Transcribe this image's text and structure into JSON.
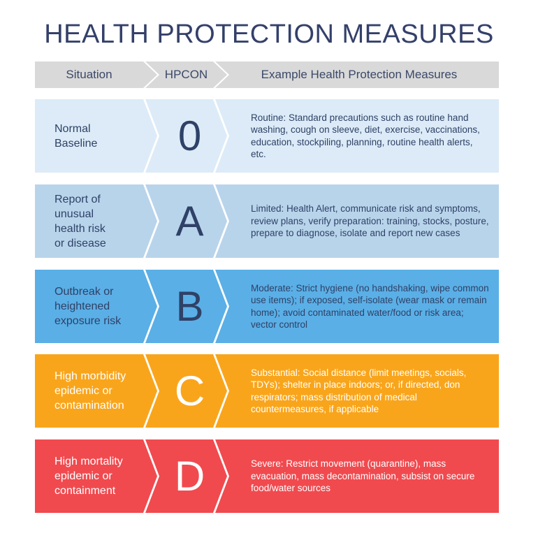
{
  "title": "HEALTH PROTECTION MEASURES",
  "header": {
    "situation": "Situation",
    "hpcon": "HPCON",
    "measures": "Example Health Protection Measures"
  },
  "colors": {
    "title": "#34406a",
    "header_bg": "#d9d9d9",
    "level_0": "#dcebf7",
    "level_A": "#b8d4eb",
    "level_B": "#5aafe6",
    "level_C": "#f9a51b",
    "level_D": "#f04a4f"
  },
  "levels": [
    {
      "situation": "Normal\nBaseline",
      "code": "0",
      "measures": "Routine: Standard precautions such as routine hand washing, cough on sleeve, diet, exercise, vaccinations, education, stockpiling, planning, routine health alerts, etc.",
      "bg": "#dcebf7",
      "fg": "#2f4167"
    },
    {
      "situation": "Report of\nunusual\nhealth risk\nor disease",
      "code": "A",
      "measures": "Limited: Health Alert, communicate risk and symptoms, review plans, verify preparation: training, stocks, posture, prepare to diagnose, isolate and report new cases",
      "bg": "#b8d4eb",
      "fg": "#2f4167"
    },
    {
      "situation": "Outbreak or\nheightened\nexposure risk",
      "code": "B",
      "measures": "Moderate: Strict hygiene (no handshaking, wipe common use items); if exposed, self-isolate (wear mask or remain home); avoid contaminated water/food or risk area; vector control",
      "bg": "#5aafe6",
      "fg": "#2f4167"
    },
    {
      "situation": "High morbidity\nepidemic or\ncontamination",
      "code": "C",
      "measures": "Substantial: Social distance (limit meetings, socials, TDYs); shelter in place indoors; or, if directed, don respirators; mass distribution of medical countermeasures, if applicable",
      "bg": "#f9a51b",
      "fg": "#ffffff"
    },
    {
      "situation": "High mortality\nepidemic or\ncontainment",
      "code": "D",
      "measures": "Severe: Restrict movement (quarantine), mass evacuation, mass decontamination, subsist on secure food/water sources",
      "bg": "#f04a4f",
      "fg": "#ffffff"
    }
  ]
}
